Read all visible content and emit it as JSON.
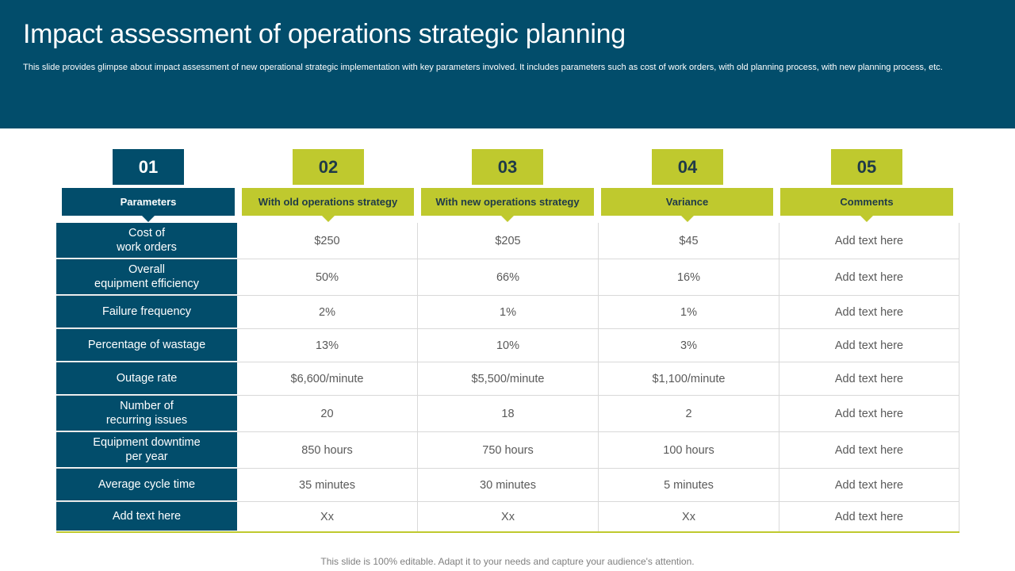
{
  "header": {
    "title": "Impact assessment of operations strategic planning",
    "subtitle": "This slide provides glimpse about impact assessment of new operational strategic implementation with key parameters involved. It includes parameters such as cost of work orders, with old planning process, with new planning process, etc."
  },
  "columns": [
    {
      "number": "01",
      "label": "Parameters"
    },
    {
      "number": "02",
      "label": "With old operations strategy"
    },
    {
      "number": "03",
      "label": "With new operations strategy"
    },
    {
      "number": "04",
      "label": "Variance"
    },
    {
      "number": "05",
      "label": "Comments"
    }
  ],
  "rows": [
    {
      "param": "Cost of\nwork orders",
      "old": "$250",
      "new": "$205",
      "variance": "$45",
      "comment": "Add text here"
    },
    {
      "param": "Overall\nequipment efficiency",
      "old": "50%",
      "new": "66%",
      "variance": "16%",
      "comment": "Add text here"
    },
    {
      "param": "Failure frequency",
      "old": "2%",
      "new": "1%",
      "variance": "1%",
      "comment": "Add text here"
    },
    {
      "param": "Percentage of wastage",
      "old": "13%",
      "new": "10%",
      "variance": "3%",
      "comment": "Add text here"
    },
    {
      "param": "Outage rate",
      "old": "$6,600/minute",
      "new": "$5,500/minute",
      "variance": "$1,100/minute",
      "comment": "Add text here"
    },
    {
      "param": "Number of\nrecurring issues",
      "old": "20",
      "new": "18",
      "variance": "2",
      "comment": "Add text here"
    },
    {
      "param": "Equipment downtime\nper year",
      "old": "850 hours",
      "new": "750 hours",
      "variance": "100 hours",
      "comment": "Add text here"
    },
    {
      "param": "Average cycle time",
      "old": "35 minutes",
      "new": "30 minutes",
      "variance": "5 minutes",
      "comment": "Add text here"
    },
    {
      "param": "Add text here",
      "old": "Xx",
      "new": "Xx",
      "variance": "Xx",
      "comment": "Add text here"
    }
  ],
  "footer": {
    "text": "This slide is 100% editable. Adapt it to your needs and capture your audience's attention."
  },
  "colors": {
    "primary": "#024d6b",
    "accent": "#bfc92e"
  }
}
